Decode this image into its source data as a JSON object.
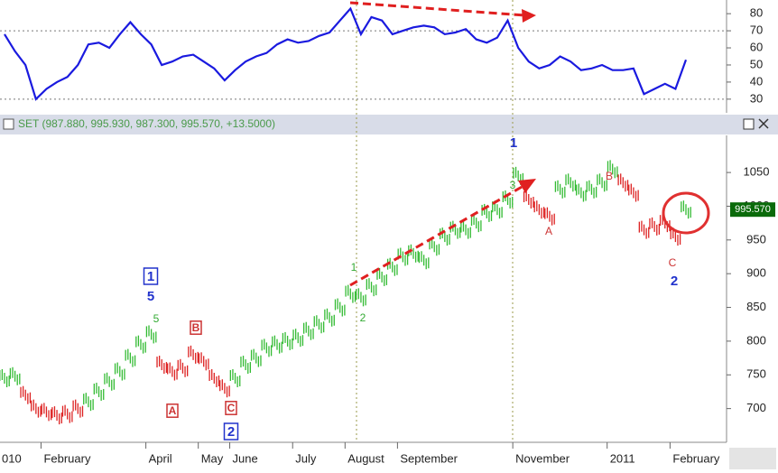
{
  "chart_data": [
    {
      "type": "line",
      "color": "#1a1adf",
      "ylim": [
        22,
        88
      ],
      "yticks": [
        30,
        40,
        50,
        60,
        70,
        80
      ],
      "hlines": [
        30,
        70
      ],
      "values": [
        68,
        58,
        50,
        30,
        36,
        40,
        43,
        50,
        62,
        63,
        60,
        68,
        75,
        68,
        62,
        50,
        52,
        55,
        56,
        52,
        48,
        41,
        47,
        52,
        55,
        57,
        62,
        65,
        63,
        64,
        67,
        69,
        76,
        83,
        68,
        78,
        76,
        68,
        70,
        72,
        73,
        72,
        68,
        69,
        71,
        65,
        63,
        66,
        76,
        60,
        52,
        48,
        50,
        55,
        52,
        47,
        48,
        50,
        47,
        47,
        48,
        33,
        36,
        39,
        36,
        53
      ]
    },
    {
      "type": "price",
      "title": "SET (987.880, 995.930, 987.300, 995.570, +13.5000)",
      "last_label": "995.570",
      "ylim": [
        650,
        1105
      ],
      "yticks": [
        700,
        750,
        800,
        850,
        900,
        950,
        1000,
        1050
      ],
      "categories": [
        "010",
        null,
        null,
        null,
        "February",
        null,
        null,
        null,
        null,
        null,
        null,
        null,
        null,
        null,
        "April",
        null,
        null,
        null,
        null,
        "May",
        null,
        null,
        "June",
        null,
        null,
        null,
        null,
        null,
        "July",
        null,
        null,
        null,
        null,
        "August",
        null,
        null,
        null,
        null,
        "September",
        null,
        null,
        null,
        null,
        null,
        null,
        null,
        null,
        null,
        null,
        "November",
        null,
        null,
        null,
        null,
        null,
        null,
        null,
        null,
        "2011",
        null,
        null,
        null,
        null,
        null,
        "February",
        null
      ],
      "series": [
        {
          "name": "up",
          "color": "#33bb33",
          "values": [
            745,
            748,
            null,
            null,
            null,
            null,
            null,
            null,
            710,
            725,
            740,
            755,
            775,
            795,
            810,
            null,
            null,
            null,
            null,
            null,
            null,
            null,
            745,
            765,
            775,
            790,
            795,
            800,
            805,
            815,
            825,
            835,
            850,
            870,
            865,
            880,
            895,
            910,
            925,
            930,
            920,
            940,
            955,
            965,
            965,
            975,
            990,
            995,
            1010,
            1045,
            null,
            null,
            null,
            1025,
            1035,
            1020,
            1025,
            1035,
            1055,
            null,
            null,
            null,
            null,
            null,
            null,
            995
          ]
        },
        {
          "name": "down",
          "color": "#dd2222",
          "values": [
            null,
            null,
            720,
            700,
            695,
            690,
            692,
            700,
            null,
            null,
            null,
            null,
            null,
            null,
            null,
            765,
            755,
            760,
            780,
            770,
            745,
            730,
            null,
            null,
            null,
            null,
            null,
            null,
            null,
            null,
            null,
            null,
            null,
            null,
            null,
            null,
            null,
            null,
            null,
            null,
            null,
            null,
            null,
            null,
            null,
            null,
            null,
            null,
            null,
            null,
            1010,
            995,
            985,
            null,
            null,
            null,
            null,
            null,
            null,
            1035,
            1020,
            965,
            970,
            975,
            955,
            null
          ]
        }
      ],
      "annotations": [
        "1",
        "5",
        "5",
        "A",
        "B",
        "C",
        "2",
        "1",
        "2",
        "1",
        "3",
        "A",
        "B",
        "C",
        "2"
      ]
    }
  ]
}
